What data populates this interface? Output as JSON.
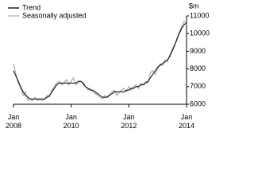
{
  "chart_data": {
    "type": "line",
    "y_unit": "$m",
    "categories": [
      "Jan 2008",
      null,
      null,
      null,
      null,
      null,
      null,
      null,
      null,
      null,
      null,
      null,
      null,
      null,
      null,
      null,
      null,
      null,
      null,
      null,
      null,
      null,
      null,
      null,
      "Jan 2010",
      null,
      null,
      null,
      null,
      null,
      null,
      null,
      null,
      null,
      null,
      null,
      null,
      null,
      null,
      null,
      null,
      null,
      null,
      null,
      null,
      null,
      null,
      null,
      "Jan 2012",
      null,
      null,
      null,
      null,
      null,
      null,
      null,
      null,
      null,
      null,
      null,
      null,
      null,
      null,
      null,
      null,
      null,
      null,
      null,
      null,
      null,
      null,
      null,
      "Jan 2014"
    ],
    "series": [
      {
        "name": "Trend",
        "color": "#000000",
        "values": [
          7900,
          7600,
          7300,
          7000,
          6700,
          6500,
          6400,
          6300,
          6300,
          6300,
          6300,
          6300,
          6300,
          6300,
          6400,
          6500,
          6700,
          6900,
          7100,
          7200,
          7200,
          7200,
          7200,
          7200,
          7200,
          7200,
          7200,
          7300,
          7300,
          7200,
          7000,
          6900,
          6800,
          6800,
          6700,
          6600,
          6500,
          6400,
          6400,
          6400,
          6500,
          6600,
          6700,
          6700,
          6700,
          6700,
          6700,
          6800,
          6800,
          6900,
          6900,
          7000,
          7000,
          7100,
          7100,
          7200,
          7300,
          7500,
          7700,
          7900,
          8100,
          8200,
          8300,
          8400,
          8500,
          8700,
          9000,
          9300,
          9700,
          10000,
          10300,
          10500,
          10600
        ]
      },
      {
        "name": "Seasonally adjusted",
        "color": "#b0b0b0",
        "values": [
          8300,
          7700,
          7200,
          6900,
          6500,
          6700,
          6200,
          6300,
          6200,
          6400,
          6200,
          6300,
          6200,
          6300,
          6500,
          6400,
          6800,
          7000,
          7200,
          7300,
          7100,
          7200,
          7400,
          7100,
          7300,
          7500,
          7100,
          7200,
          7300,
          7100,
          7000,
          6800,
          6900,
          6700,
          6600,
          6500,
          6400,
          6300,
          6500,
          6400,
          6600,
          6700,
          6800,
          6500,
          6700,
          6800,
          6900,
          6700,
          7000,
          6800,
          7000,
          7100,
          6900,
          7200,
          7100,
          7300,
          7200,
          7800,
          7900,
          7700,
          8000,
          8300,
          8200,
          8500,
          8400,
          8800,
          9100,
          9400,
          9600,
          10100,
          10400,
          10700,
          10500
        ]
      }
    ],
    "ylim": [
      6000,
      11000
    ],
    "yticks": [
      6000,
      7000,
      8000,
      9000,
      10000,
      11000
    ]
  }
}
